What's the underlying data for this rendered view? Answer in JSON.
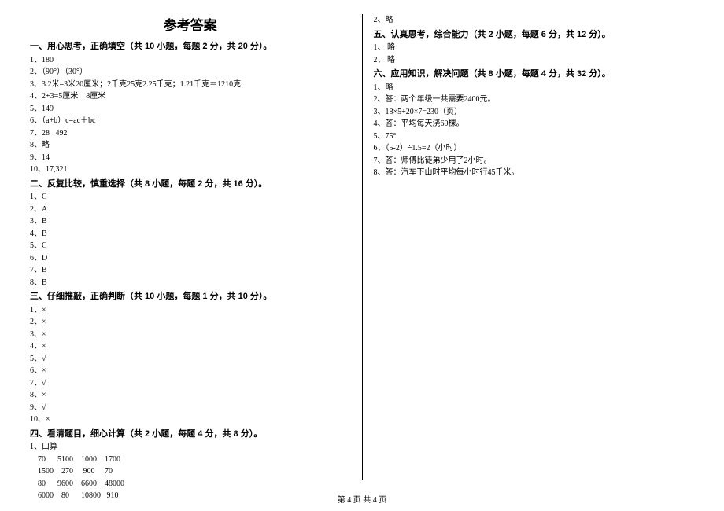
{
  "title": "参考答案",
  "footer": "第 4 页  共 4 页",
  "left": {
    "s1": {
      "heading": "一、用心思考，正确填空（共 10 小题，每题 2 分，共 20 分）。",
      "l1": "1、180",
      "l2": "2、（90°）（30°）",
      "l3": "3、3.2米=3米20厘米；2千克25克2.25千克；1.21千克＝1210克",
      "l4": "4、2+3=5厘米    8厘米",
      "l5": "5、149",
      "l6": "6、（a+b）c=ac＋bc",
      "l7": "7、28   492",
      "l8": "8、略",
      "l9": "9、14",
      "l10": "10、17,321"
    },
    "s2": {
      "heading": "二、反复比较，慎重选择（共 8 小题，每题 2 分，共 16 分）。",
      "l1": "1、C",
      "l2": "2、A",
      "l3": "3、B",
      "l4": "4、B",
      "l5": "5、C",
      "l6": "6、D",
      "l7": "7、B",
      "l8": "8、B"
    },
    "s3": {
      "heading": "三、仔细推敲，正确判断（共 10 小题，每题 1 分，共 10 分）。",
      "l1": "1、×",
      "l2": "2、×",
      "l3": "3、×",
      "l4": "4、×",
      "l5": "5、√",
      "l6": "6、×",
      "l7": "7、√",
      "l8": "8、×",
      "l9": "9、√",
      "l10": "10、×"
    },
    "s4": {
      "heading": "四、看清题目，细心计算（共 2 小题，每题 4 分，共 8 分）。",
      "l1": "1、口算",
      "r1": "    70      5100    1000    1700",
      "r2": "    1500    270     900     70",
      "r3": "    80      9600    6600    48000",
      "r4": "    6000    80      10800   910"
    }
  },
  "right": {
    "top": "2、略",
    "s5": {
      "heading": "五、认真思考，综合能力（共 2 小题，每题 6 分，共 12 分）。",
      "l1": "1、 略",
      "l2": "2、 略"
    },
    "s6": {
      "heading": "六、应用知识，解决问题（共 8 小题，每题 4 分，共 32 分）。",
      "l1": "1、略",
      "l2": "2、答：两个年级一共需要2400元。",
      "l3": "3、18×5+20×7=230（页）",
      "l4": "4、答：平均每天浇60棵。",
      "l5": "5、75°",
      "l6": "6、（5-2）÷1.5=2（小时）",
      "l7": "7、答：师傅比徒弟少用了2小时。",
      "l8": "8、答：汽车下山时平均每小时行45千米。"
    }
  }
}
